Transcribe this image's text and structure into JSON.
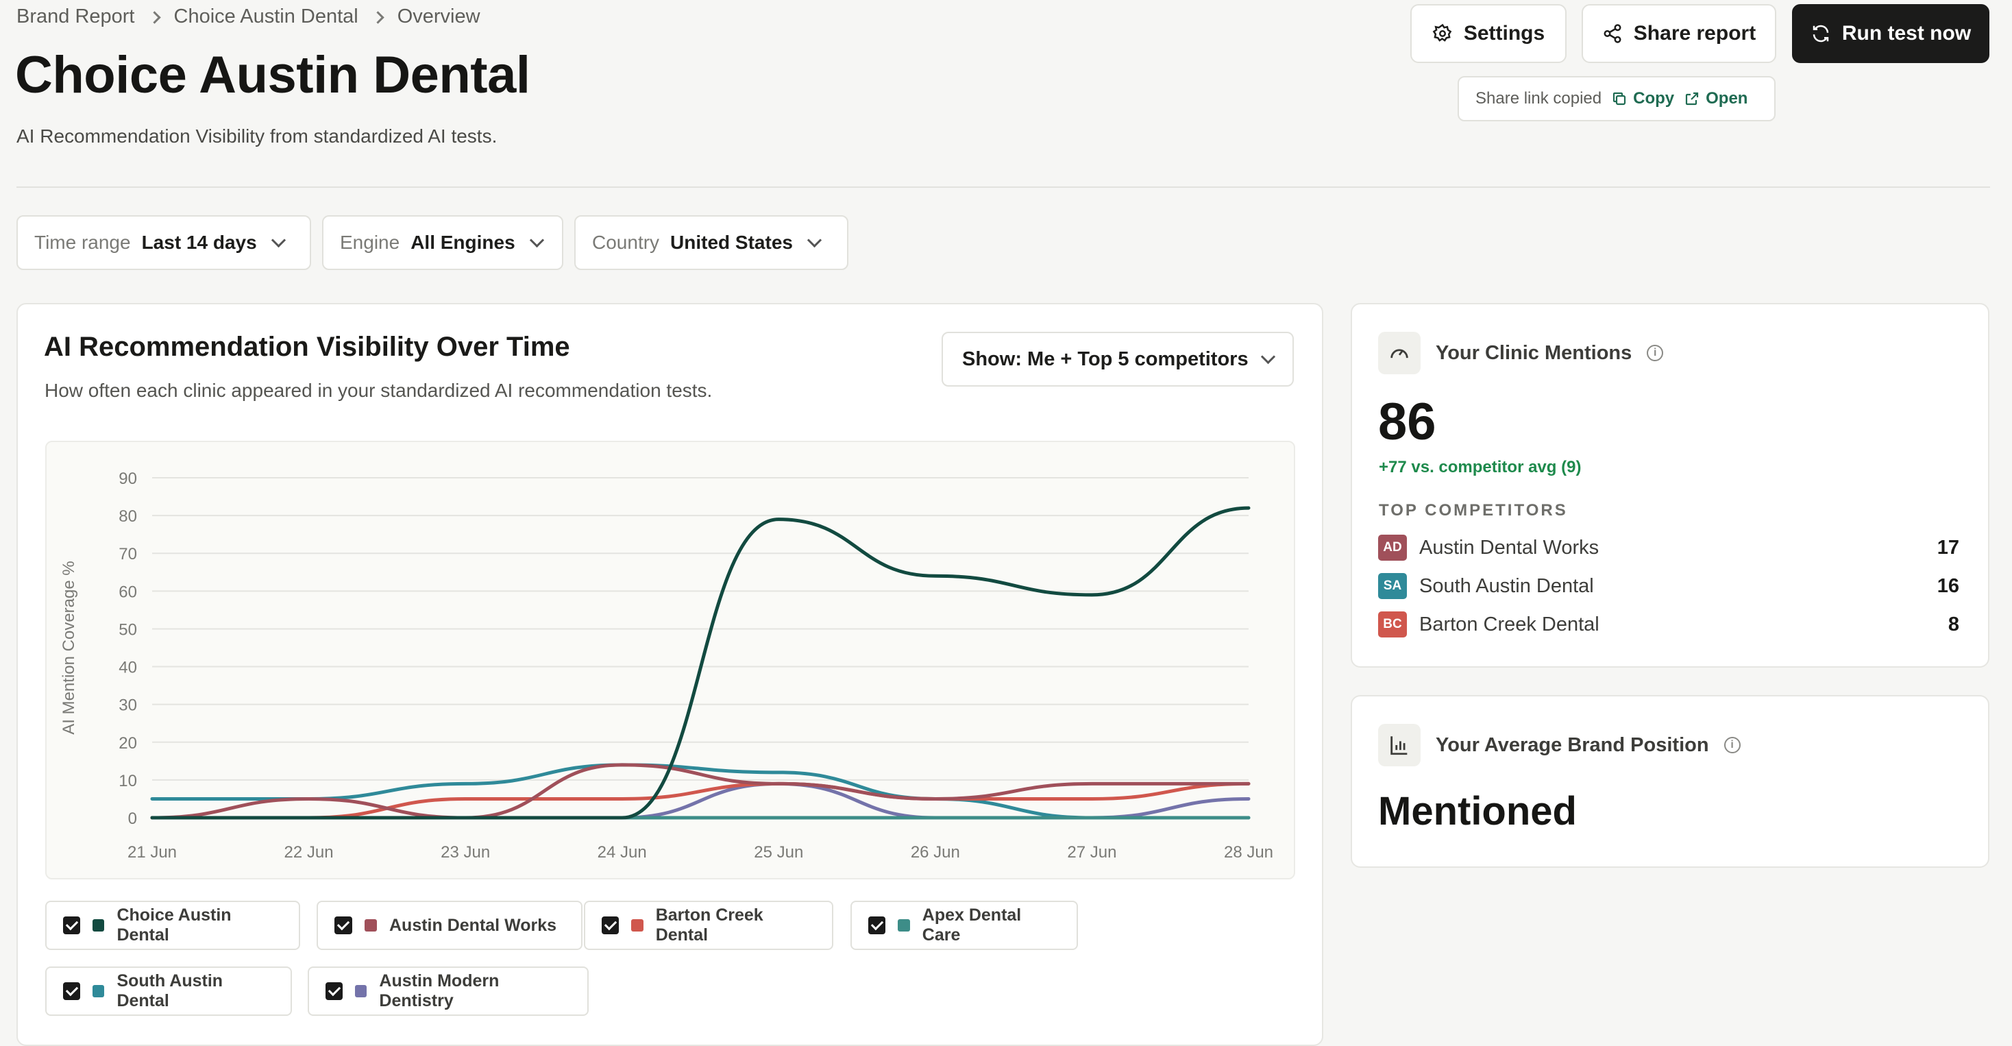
{
  "breadcrumb": [
    "Brand Report",
    "Choice Austin Dental",
    "Overview"
  ],
  "page": {
    "title": "Choice Austin Dental",
    "subtitle": "AI Recommendation Visibility from standardized AI tests."
  },
  "toolbar": {
    "settings_label": "Settings",
    "share_label": "Share report",
    "run_label": "Run test now",
    "share_status": "Share link copied",
    "copy_label": "Copy",
    "open_label": "Open"
  },
  "filters": [
    {
      "label": "Time range",
      "value": "Last 14 days"
    },
    {
      "label": "Engine",
      "value": "All Engines"
    },
    {
      "label": "Country",
      "value": "United States"
    }
  ],
  "chart_card": {
    "title": "AI Recommendation Visibility Over Time",
    "subtitle": "How often each clinic appeared in your standardized AI recommendation tests.",
    "show_select": "Show: Me + Top 5 competitors"
  },
  "chart_data": {
    "type": "line",
    "ylabel": "AI Mention Coverage %",
    "xlabel": "",
    "ylim": [
      0,
      90
    ],
    "yticks": [
      0,
      10,
      20,
      30,
      40,
      50,
      60,
      70,
      80,
      90
    ],
    "x": [
      "21 Jun",
      "22 Jun",
      "23 Jun",
      "24 Jun",
      "25 Jun",
      "26 Jun",
      "27 Jun",
      "28 Jun"
    ],
    "grid": true,
    "series": [
      {
        "name": "Choice Austin Dental",
        "color": "#124a40",
        "values": [
          0,
          0,
          0,
          0,
          79,
          64,
          59,
          82
        ]
      },
      {
        "name": "Austin Dental Works",
        "color": "#a0505a",
        "values": [
          0,
          5,
          0,
          14,
          9,
          5,
          9,
          9
        ]
      },
      {
        "name": "Barton Creek Dental",
        "color": "#d0574d",
        "values": [
          0,
          0,
          5,
          5,
          9,
          5,
          5,
          9
        ]
      },
      {
        "name": "Apex Dental Care",
        "color": "#3d8d88",
        "values": [
          0,
          0,
          0,
          0,
          0,
          0,
          0,
          0
        ]
      },
      {
        "name": "South Austin Dental",
        "color": "#2f8a99",
        "values": [
          5,
          5,
          9,
          14,
          12,
          5,
          0,
          0
        ]
      },
      {
        "name": "Austin Modern Dentistry",
        "color": "#7473aa",
        "values": [
          0,
          0,
          0,
          0,
          9,
          0,
          0,
          5
        ]
      }
    ]
  },
  "mentions_card": {
    "title": "Your Clinic Mentions",
    "value": "86",
    "delta": "+77 vs. competitor avg (9)",
    "competitors_heading": "TOP COMPETITORS",
    "competitors": [
      {
        "initials": "AD",
        "name": "Austin Dental Works",
        "count": "17",
        "color": "#a0505a"
      },
      {
        "initials": "SA",
        "name": "South Austin Dental",
        "count": "16",
        "color": "#2f8a99"
      },
      {
        "initials": "BC",
        "name": "Barton Creek Dental",
        "count": "8",
        "color": "#d0574d"
      }
    ]
  },
  "position_card": {
    "title": "Your Average Brand Position",
    "value": "Mentioned"
  },
  "icons": {
    "settings": "gear-icon",
    "share": "share-icon",
    "run": "refresh-icon",
    "copy": "copy-icon",
    "open": "external-link-icon",
    "mentions": "gauge-icon",
    "position": "bar-chart-icon",
    "info": "info-icon"
  },
  "colors": {
    "accent_green": "#1f6b52",
    "delta_green": "#1e8a4c",
    "dark_button": "#1b1b1a"
  }
}
